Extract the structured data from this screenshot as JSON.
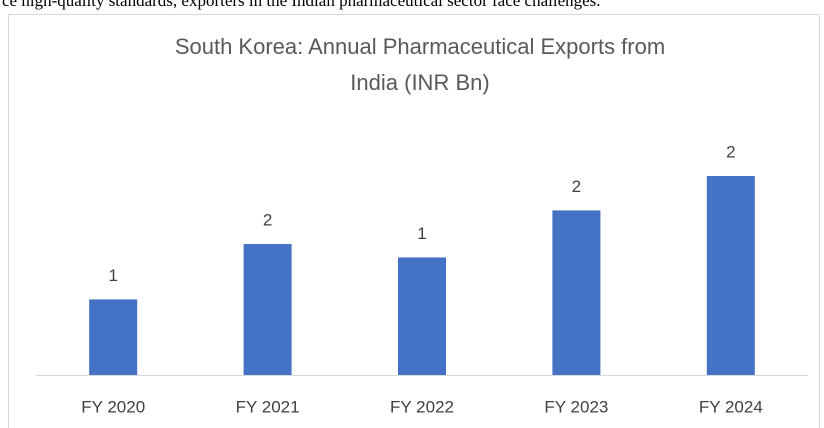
{
  "top_text": "ce high-quality standards, exporters in the Indian pharmaceutical sector face challenges.",
  "chart_data": {
    "type": "bar",
    "title": [
      "South Korea: Annual Pharmaceutical Exports from",
      "India (INR Bn)"
    ],
    "categories": [
      "FY 2020",
      "FY 2021",
      "FY 2022",
      "FY 2023",
      "FY 2024"
    ],
    "values": [
      0.9,
      1.56,
      1.4,
      1.96,
      2.37
    ],
    "value_labels": [
      "1",
      "2",
      "1",
      "2",
      "2"
    ],
    "color": "#4472c4"
  }
}
